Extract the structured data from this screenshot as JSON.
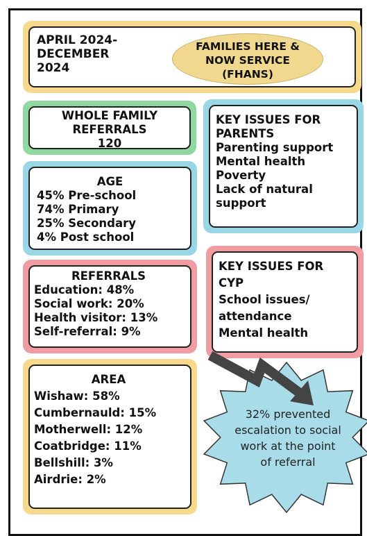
{
  "header": {
    "dates": [
      "APRIL 2024-",
      "DECEMBER",
      "2024"
    ],
    "service": [
      "FAMILIES HERE &",
      "NOW SERVICE",
      "(FHANS)"
    ]
  },
  "whole_family": [
    "WHOLE FAMILY",
    "REFERRALS",
    "120"
  ],
  "age": {
    "title": "AGE",
    "items": [
      "45% Pre-school",
      "74% Primary",
      "25% Secondary",
      "4%  Post school"
    ]
  },
  "referrals": {
    "title": "REFERRALS",
    "items": [
      "Education: 48%",
      "Social work: 20%",
      "Health visitor: 13%",
      "Self-referral: 9%"
    ]
  },
  "area": {
    "title": "AREA",
    "items": [
      "Wishaw: 58%",
      "Cumbernauld: 15%",
      "Motherwell: 12%",
      "Coatbridge: 11%",
      "Bellshill: 3%",
      "Airdrie: 2%"
    ]
  },
  "parents": {
    "title": [
      "KEY ISSUES FOR",
      "PARENTS"
    ],
    "items": [
      "Parenting support",
      "Mental health",
      "Poverty",
      "Lack of natural",
      "support"
    ]
  },
  "cyp": {
    "title": [
      "KEY ISSUES FOR",
      "CYP"
    ],
    "items": [
      "School issues/",
      "attendance",
      "Mental health"
    ]
  },
  "star": [
    "32% prevented",
    "escalation to social",
    "work at the point",
    "of referral"
  ]
}
